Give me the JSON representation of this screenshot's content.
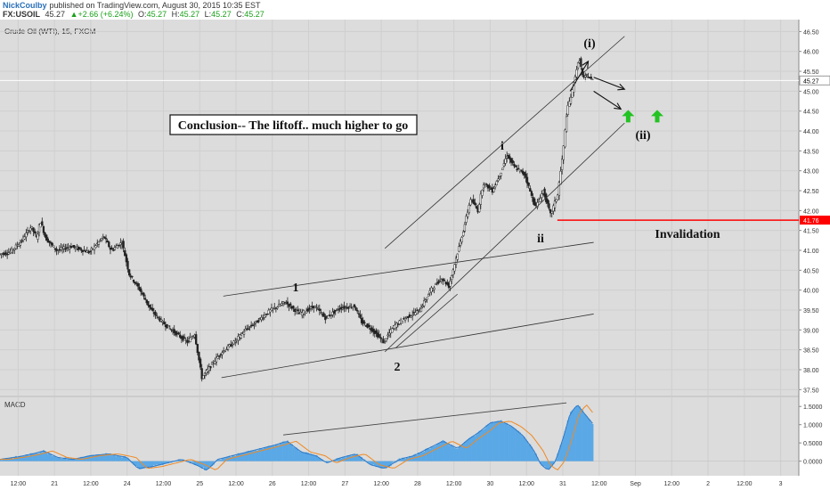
{
  "header": {
    "author": "NickCoulby",
    "published_text": "published on TradingView.com, August 30, 2015 10:35 EST",
    "symbol": "FX:USOIL",
    "last": "45.27",
    "change": "+2.66 (+6.24%)",
    "open_label": "O:",
    "open": "45.27",
    "high_label": "H:",
    "high": "45.27",
    "low_label": "L:",
    "low": "45.27",
    "close_label": "C:",
    "close": "45.27"
  },
  "colors": {
    "candle": "#222222",
    "trend_line": "#333333",
    "invalidation": "#ff0000",
    "green_arrow": "#22c322",
    "macd_hist": "#5aa8e6",
    "macd_line": "#2e79c7",
    "signal_line": "#f08a24",
    "price_tag": "#ffffff",
    "invalidation_tag": "#ff0000"
  },
  "chart_data": {
    "type": "candlestick",
    "title": "Crude Oil (WTI), 15, FXCM",
    "interval": "15",
    "x_ticks": [
      "12:00",
      "21",
      "12:00",
      "24",
      "12:00",
      "25",
      "12:00",
      "26",
      "12:00",
      "27",
      "12:00",
      "28",
      "12:00",
      "30",
      "12:00",
      "31",
      "12:00",
      "Sep",
      "12:00",
      "2",
      "12:00",
      "3"
    ],
    "y_ticks": [
      37.5,
      38.0,
      38.5,
      39.0,
      39.5,
      40.0,
      40.5,
      41.0,
      41.5,
      42.0,
      42.5,
      43.0,
      43.5,
      44.0,
      44.5,
      45.0,
      45.5,
      46.0,
      46.5
    ],
    "y_tick_labels": [
      "37.50",
      "38.00",
      "38.50",
      "39.00",
      "39.50",
      "40.00",
      "40.50",
      "41.00",
      "41.50",
      "42.00",
      "42.50",
      "43.00",
      "43.50",
      "44.00",
      "44.50",
      "45.00",
      "45.50",
      "46.00",
      "46.50"
    ],
    "ylim": [
      37.35,
      46.8
    ],
    "xlim": [
      0,
      22
    ],
    "grid": true,
    "price_path": [
      [
        0,
        40.9
      ],
      [
        0.3,
        40.95
      ],
      [
        0.6,
        41.2
      ],
      [
        0.9,
        41.6
      ],
      [
        1.05,
        41.3
      ],
      [
        1.15,
        41.75
      ],
      [
        1.3,
        41.3
      ],
      [
        1.6,
        41.0
      ],
      [
        2.0,
        41.1
      ],
      [
        2.5,
        40.95
      ],
      [
        2.9,
        41.35
      ],
      [
        3.1,
        41.0
      ],
      [
        3.4,
        41.2
      ],
      [
        3.6,
        40.4
      ],
      [
        3.9,
        40.0
      ],
      [
        4.2,
        39.5
      ],
      [
        4.5,
        39.2
      ],
      [
        4.9,
        38.9
      ],
      [
        5.2,
        38.7
      ],
      [
        5.4,
        38.9
      ],
      [
        5.6,
        37.8
      ],
      [
        5.85,
        38.1
      ],
      [
        6.1,
        38.4
      ],
      [
        6.5,
        38.7
      ],
      [
        6.8,
        39.0
      ],
      [
        7.1,
        39.2
      ],
      [
        7.5,
        39.5
      ],
      [
        7.9,
        39.7
      ],
      [
        8.3,
        39.4
      ],
      [
        8.7,
        39.6
      ],
      [
        9.0,
        39.3
      ],
      [
        9.4,
        39.55
      ],
      [
        9.8,
        39.6
      ],
      [
        10.0,
        39.2
      ],
      [
        10.3,
        39.0
      ],
      [
        10.6,
        38.7
      ],
      [
        10.9,
        39.1
      ],
      [
        11.2,
        39.3
      ],
      [
        11.6,
        39.5
      ],
      [
        11.9,
        40.0
      ],
      [
        12.2,
        40.3
      ],
      [
        12.4,
        40.1
      ],
      [
        12.6,
        40.8
      ],
      [
        12.8,
        41.5
      ],
      [
        13.0,
        42.3
      ],
      [
        13.2,
        42.0
      ],
      [
        13.35,
        42.7
      ],
      [
        13.6,
        42.5
      ],
      [
        13.85,
        43.0
      ],
      [
        14.0,
        43.4
      ],
      [
        14.2,
        43.1
      ],
      [
        14.5,
        42.9
      ],
      [
        14.7,
        42.3
      ],
      [
        14.8,
        42.1
      ],
      [
        15.0,
        42.5
      ],
      [
        15.2,
        41.9
      ],
      [
        15.4,
        42.4
      ],
      [
        15.55,
        43.5
      ],
      [
        15.65,
        44.5
      ],
      [
        15.8,
        45.0
      ],
      [
        15.9,
        45.5
      ],
      [
        16.0,
        45.8
      ],
      [
        16.1,
        45.3
      ],
      [
        16.2,
        45.4
      ],
      [
        16.35,
        45.27
      ]
    ],
    "last_price": "45.27",
    "invalidation_price": 41.76,
    "invalidation_label": "41.76"
  },
  "trend_lines": [
    {
      "name": "channel-1-upper",
      "x1": 6.15,
      "y1": 39.85,
      "x2": 16.35,
      "y2": 41.2
    },
    {
      "name": "channel-1-lower",
      "x1": 6.1,
      "y1": 37.8,
      "x2": 16.35,
      "y2": 39.4
    },
    {
      "name": "channel-2-upper",
      "x1": 10.6,
      "y1": 41.05,
      "x2": 17.2,
      "y2": 46.38
    },
    {
      "name": "channel-2-lower",
      "x1": 10.6,
      "y1": 38.45,
      "x2": 17.2,
      "y2": 44.2
    },
    {
      "name": "wave-2-line",
      "x1": 10.9,
      "y1": 38.55,
      "x2": 12.6,
      "y2": 39.9
    }
  ],
  "arrows": [
    {
      "name": "arrow-up-right",
      "x1": 15.7,
      "y1": 45.0,
      "x2": 16.2,
      "y2": 45.75
    },
    {
      "name": "arrow-down-right-upper",
      "x1": 16.35,
      "y1": 45.35,
      "x2": 17.2,
      "y2": 45.05
    },
    {
      "name": "arrow-down-right-lower",
      "x1": 16.35,
      "y1": 45.0,
      "x2": 17.1,
      "y2": 44.55
    }
  ],
  "green_arrows": [
    {
      "name": "green-arrow-up-1",
      "x": 17.3,
      "y": 44.35
    },
    {
      "name": "green-arrow-up-2",
      "x": 18.1,
      "y": 44.35
    }
  ],
  "annotations": {
    "conclusion": "Conclusion-- The liftoff.. much higher to go",
    "wave_1": "1",
    "wave_2": "2",
    "wave_i": "i",
    "wave_ii": "ii",
    "wave_i_paren": "(i)",
    "wave_ii_paren": "(ii)",
    "invalidation": "Invalidation"
  },
  "macd": {
    "label": "MACD",
    "y_ticks": [
      0.0,
      0.5,
      1.0,
      1.5
    ],
    "y_tick_labels": [
      "0.0000",
      "0.5000",
      "1.0000",
      "1.5000"
    ],
    "ylim": [
      -0.4,
      1.75
    ],
    "divergence_line": {
      "x1": 7.8,
      "y1": 0.72,
      "x2": 15.6,
      "y2": 1.6
    },
    "values": [
      [
        0,
        0.05
      ],
      [
        0.5,
        0.12
      ],
      [
        0.9,
        0.2
      ],
      [
        1.2,
        0.28
      ],
      [
        1.6,
        0.1
      ],
      [
        2.0,
        0.05
      ],
      [
        2.5,
        0.15
      ],
      [
        3.0,
        0.2
      ],
      [
        3.5,
        0.1
      ],
      [
        3.8,
        -0.2
      ],
      [
        4.2,
        -0.15
      ],
      [
        4.6,
        -0.05
      ],
      [
        5.0,
        0.05
      ],
      [
        5.4,
        -0.1
      ],
      [
        5.7,
        -0.25
      ],
      [
        6.0,
        0.05
      ],
      [
        6.4,
        0.15
      ],
      [
        6.8,
        0.25
      ],
      [
        7.2,
        0.35
      ],
      [
        7.6,
        0.45
      ],
      [
        7.9,
        0.55
      ],
      [
        8.3,
        0.25
      ],
      [
        8.7,
        0.15
      ],
      [
        9.0,
        -0.05
      ],
      [
        9.4,
        0.1
      ],
      [
        9.8,
        0.2
      ],
      [
        10.2,
        -0.1
      ],
      [
        10.6,
        -0.2
      ],
      [
        11.0,
        0.05
      ],
      [
        11.4,
        0.15
      ],
      [
        11.8,
        0.35
      ],
      [
        12.2,
        0.55
      ],
      [
        12.6,
        0.35
      ],
      [
        12.9,
        0.6
      ],
      [
        13.2,
        0.8
      ],
      [
        13.5,
        1.05
      ],
      [
        13.8,
        1.1
      ],
      [
        14.1,
        0.95
      ],
      [
        14.4,
        0.7
      ],
      [
        14.7,
        0.3
      ],
      [
        14.9,
        -0.1
      ],
      [
        15.1,
        -0.25
      ],
      [
        15.3,
        0.0
      ],
      [
        15.5,
        0.6
      ],
      [
        15.7,
        1.3
      ],
      [
        15.9,
        1.55
      ],
      [
        16.1,
        1.3
      ],
      [
        16.35,
        1.0
      ]
    ]
  }
}
